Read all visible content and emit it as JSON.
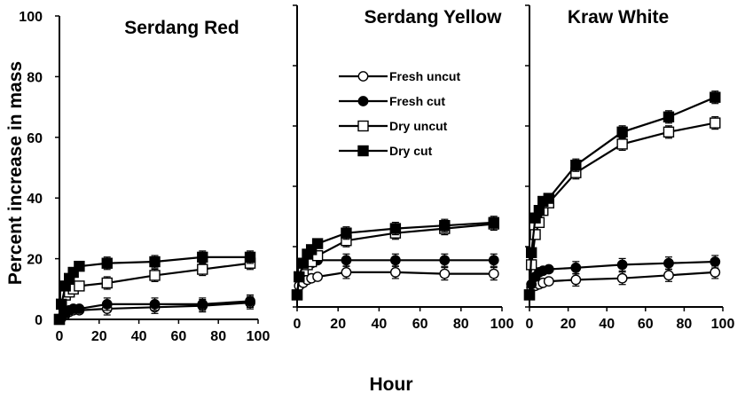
{
  "chart_data": [
    {
      "type": "line",
      "title": "Serdang Red",
      "xlabel": "Hour",
      "ylabel": "Percent increase in mass",
      "xlim": [
        0,
        100
      ],
      "ylim": [
        0,
        100
      ],
      "xticks": [
        "0",
        "20",
        "40",
        "60",
        "80",
        "100"
      ],
      "yticks": [
        "0",
        "20",
        "40",
        "60",
        "80",
        "100"
      ],
      "x": [
        0,
        1,
        3,
        5,
        7,
        10,
        24,
        48,
        72,
        96
      ],
      "series": [
        {
          "name": "Fresh uncut",
          "values": [
            0,
            0.5,
            1.5,
            2.5,
            3,
            3,
            3.5,
            4,
            4.5,
            5.5
          ]
        },
        {
          "name": "Fresh cut",
          "values": [
            0,
            0.5,
            2,
            3,
            3.5,
            3.5,
            5,
            5,
            5,
            6
          ]
        },
        {
          "name": "Dry uncut",
          "values": [
            0,
            5,
            8,
            9,
            10,
            11,
            12,
            14.5,
            16.5,
            18.5
          ]
        },
        {
          "name": "Dry cut",
          "values": [
            0,
            5,
            11,
            13.5,
            15.5,
            17.5,
            18.5,
            19,
            20.5,
            20.5
          ]
        }
      ]
    },
    {
      "type": "line",
      "title": "Serdang Yellow",
      "xlim": [
        0,
        100
      ],
      "ylim": [
        0,
        100
      ],
      "xticks": [
        "0",
        "20",
        "40",
        "60",
        "80",
        "100"
      ],
      "x": [
        0,
        1,
        3,
        5,
        7,
        10,
        24,
        48,
        72,
        96
      ],
      "series": [
        {
          "name": "Fresh uncut",
          "values": [
            4,
            7,
            8,
            9,
            9.5,
            10,
            11.5,
            11.5,
            11,
            11
          ]
        },
        {
          "name": "Fresh cut",
          "values": [
            4,
            10,
            12,
            14,
            14.5,
            15.5,
            15.5,
            15.5,
            15.5,
            15.5
          ]
        },
        {
          "name": "Dry uncut",
          "values": [
            4,
            10,
            12,
            14,
            15,
            17,
            22,
            24.5,
            26,
            27.5
          ]
        },
        {
          "name": "Dry cut",
          "values": [
            4,
            10,
            14.5,
            17.5,
            19,
            21,
            24.5,
            26,
            27,
            28
          ]
        }
      ]
    },
    {
      "type": "line",
      "title": "Kraw White",
      "xlim": [
        0,
        100
      ],
      "ylim": [
        0,
        100
      ],
      "xticks": [
        "0",
        "20",
        "40",
        "60",
        "80",
        "100"
      ],
      "x": [
        0,
        1,
        3,
        5,
        7,
        10,
        24,
        48,
        72,
        96
      ],
      "series": [
        {
          "name": "Fresh uncut",
          "values": [
            4,
            6.5,
            7,
            7.5,
            8,
            8.5,
            9,
            9.5,
            10.5,
            11.5
          ]
        },
        {
          "name": "Fresh cut",
          "values": [
            4,
            7.5,
            10,
            11.5,
            12,
            12.5,
            13,
            14,
            14.5,
            15
          ]
        },
        {
          "name": "Dry uncut",
          "values": [
            4,
            14,
            24,
            28,
            32,
            34.5,
            44.5,
            54,
            58,
            61
          ]
        },
        {
          "name": "Dry cut",
          "values": [
            4,
            18,
            29.5,
            32,
            35,
            36,
            47,
            58,
            63,
            69.5
          ]
        }
      ]
    }
  ],
  "legend": [
    {
      "label": "Fresh uncut",
      "marker": "circle-open"
    },
    {
      "label": "Fresh cut",
      "marker": "circle-filled"
    },
    {
      "label": "Dry uncut",
      "marker": "square-open"
    },
    {
      "label": "Dry cut",
      "marker": "square-filled"
    }
  ],
  "legend_position": "inside-center-panel",
  "line_color": "#000000",
  "marker_fill": "#ffffff",
  "grid": false,
  "error_bars": true
}
